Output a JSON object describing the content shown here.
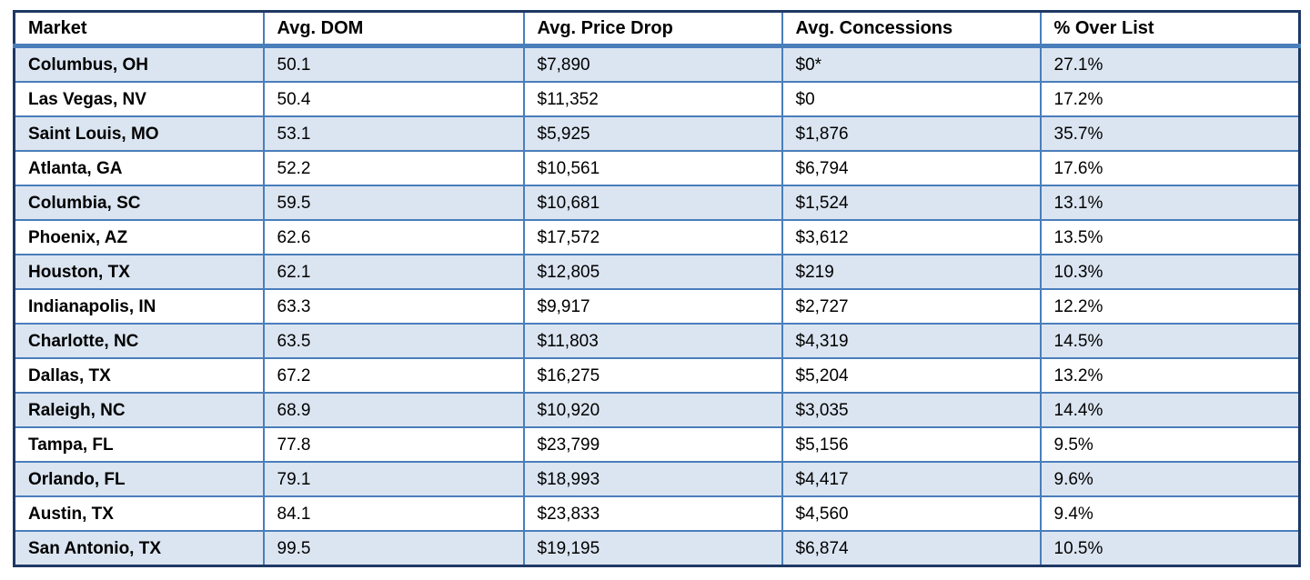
{
  "table": {
    "columns": [
      "Market",
      "Avg. DOM",
      "Avg. Price Drop",
      "Avg. Concessions",
      "% Over List"
    ],
    "rows": [
      [
        "Columbus, OH",
        "50.1",
        "$7,890",
        "$0*",
        "27.1%"
      ],
      [
        "Las Vegas, NV",
        "50.4",
        "$11,352",
        "$0",
        "17.2%"
      ],
      [
        "Saint Louis, MO",
        "53.1",
        "$5,925",
        "$1,876",
        "35.7%"
      ],
      [
        "Atlanta, GA",
        "52.2",
        "$10,561",
        "$6,794",
        "17.6%"
      ],
      [
        "Columbia, SC",
        "59.5",
        "$10,681",
        "$1,524",
        "13.1%"
      ],
      [
        "Phoenix, AZ",
        "62.6",
        "$17,572",
        "$3,612",
        "13.5%"
      ],
      [
        "Houston, TX",
        "62.1",
        "$12,805",
        "$219",
        "10.3%"
      ],
      [
        "Indianapolis, IN",
        "63.3",
        "$9,917",
        "$2,727",
        "12.2%"
      ],
      [
        "Charlotte, NC",
        "63.5",
        "$11,803",
        "$4,319",
        "14.5%"
      ],
      [
        "Dallas, TX",
        "67.2",
        "$16,275",
        "$5,204",
        "13.2%"
      ],
      [
        "Raleigh, NC",
        "68.9",
        "$10,920",
        "$3,035",
        "14.4%"
      ],
      [
        "Tampa, FL",
        "77.8",
        "$23,799",
        "$5,156",
        "9.5%"
      ],
      [
        "Orlando, FL",
        "79.1",
        "$18,993",
        "$4,417",
        "9.6%"
      ],
      [
        "Austin, TX",
        "84.1",
        "$23,833",
        "$4,560",
        "9.4%"
      ],
      [
        "San Antonio, TX",
        "99.5",
        "$19,195",
        "$6,874",
        "10.5%"
      ]
    ]
  },
  "chart_data": {
    "type": "table",
    "title": "",
    "columns": [
      "Market",
      "Avg. DOM",
      "Avg. Price Drop",
      "Avg. Concessions",
      "% Over List"
    ],
    "markets": [
      "Columbus, OH",
      "Las Vegas, NV",
      "Saint Louis, MO",
      "Atlanta, GA",
      "Columbia, SC",
      "Phoenix, AZ",
      "Houston, TX",
      "Indianapolis, IN",
      "Charlotte, NC",
      "Dallas, TX",
      "Raleigh, NC",
      "Tampa, FL",
      "Orlando, FL",
      "Austin, TX",
      "San Antonio, TX"
    ],
    "series": [
      {
        "name": "Avg. DOM",
        "values": [
          50.1,
          50.4,
          53.1,
          52.2,
          59.5,
          62.6,
          62.1,
          63.3,
          63.5,
          67.2,
          68.9,
          77.8,
          79.1,
          84.1,
          99.5
        ]
      },
      {
        "name": "Avg. Price Drop ($)",
        "values": [
          7890,
          11352,
          5925,
          10561,
          10681,
          17572,
          12805,
          9917,
          11803,
          16275,
          10920,
          23799,
          18993,
          23833,
          19195
        ]
      },
      {
        "name": "Avg. Concessions ($)",
        "values": [
          0,
          0,
          1876,
          6794,
          1524,
          3612,
          219,
          2727,
          4319,
          5204,
          3035,
          5156,
          4417,
          4560,
          6874
        ]
      },
      {
        "name": "% Over List",
        "values": [
          27.1,
          17.2,
          35.7,
          17.6,
          13.1,
          13.5,
          10.3,
          12.2,
          14.5,
          13.2,
          14.4,
          9.5,
          9.6,
          9.4,
          10.5
        ]
      }
    ],
    "annotations": [
      "$0* (asterisk footnote marker on Columbus, OH concessions)"
    ]
  },
  "colors": {
    "outer_border": "#1f3864",
    "grid_border": "#4a7ebb",
    "alt_row_bg": "#dbe5f1",
    "row_bg": "#ffffff",
    "header_bg": "#ffffff",
    "text": "#000000"
  }
}
